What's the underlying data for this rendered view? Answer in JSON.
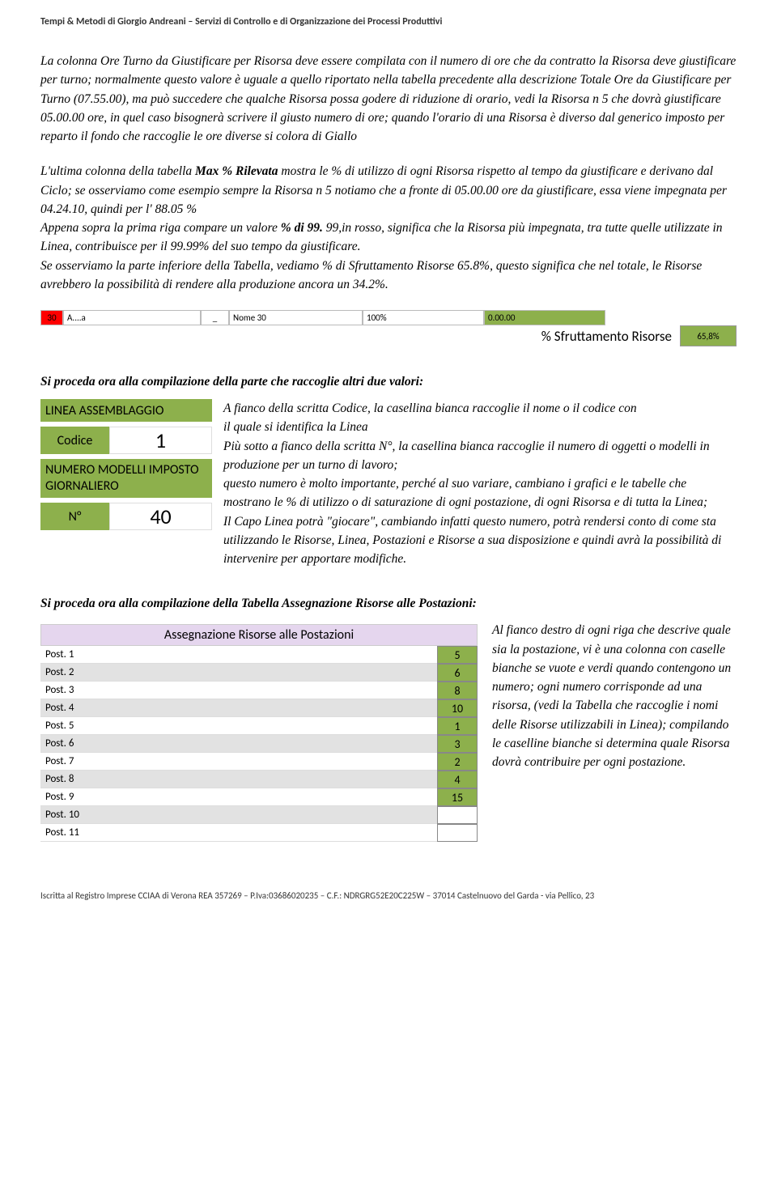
{
  "header": "Tempi & Metodi di Giorgio Andreani – Servizi di Controllo e di Organizzazione dei Processi Produttivi",
  "body1": "La colonna Ore Turno da Giustificare per Risorsa deve essere compilata con il numero di ore che da contratto la Risorsa deve giustificare per turno; normalmente questo valore è uguale a quello riportato nella tabella precedente alla descrizione Totale Ore da Giustificare per Turno (07.55.00), ma può succedere che qualche Risorsa possa godere di riduzione di orario, vedi la Risorsa n 5 che dovrà giustificare 05.00.00 ore, in quel caso bisognerà scrivere il giusto numero di ore; quando l'orario di una Risorsa è diverso dal generico imposto per reparto il fondo che raccoglie le ore diverse si colora di Giallo",
  "body2a": "L'ultima colonna della tabella ",
  "body2b": "Max % Rilevata",
  "body2c": " mostra le % di utilizzo di ogni Risorsa rispetto al tempo da giustificare e derivano dal Ciclo; se osserviamo come esempio sempre la Risorsa n 5 notiamo che a fronte di 05.00.00 ore da giustificare, essa viene impegnata per 04.24.10, quindi per l' 88.05 %",
  "body3a": "Appena sopra la prima riga compare un valore ",
  "body3b": "% di 99.",
  "body3c": "99,in rosso, significa che la Risorsa più impegnata, tra tutte quelle utilizzate in Linea, contribuisce per il 99.99% del suo tempo da giustificare.",
  "body4": "Se osserviamo la parte inferiore della Tabella, vediamo % di Sfruttamento Risorse 65.8%, questo significa che nel totale, le Risorse avrebbero la possibilità di rendere alla produzione ancora un 34.2%.",
  "row30": {
    "num": "30",
    "aa": "A....a",
    "dash": "_",
    "nome": "Nome 30",
    "percent": "100%",
    "green": "0.00.00"
  },
  "sfrutt_label": "% Sfruttamento Risorse",
  "sfrutt_val": "65,8%",
  "section2": "Si proceda ora alla compilazione della parte che raccoglie altri due valori:",
  "linea": {
    "title": "LINEA ASSEMBLAGGIO",
    "codice_label": "Codice",
    "codice_val": "1",
    "numero_modelli": "NUMERO MODELLI IMPOSTO GIORNALIERO",
    "n_label": "N°",
    "n_val": "40"
  },
  "right2": "A fianco della scritta Codice, la casellina bianca raccoglie il nome o il codice con\nil quale si identifica la Linea\nPiù sotto a fianco della scritta N°, la casellina bianca raccoglie il numero di oggetti o modelli in produzione per un turno di lavoro;\nquesto numero è molto importante, perché al suo variare, cambiano i grafici e le tabelle che mostrano le % di utilizzo o di saturazione di ogni postazione, di ogni Risorsa e di tutta la Linea;\nIl Capo Linea potrà \"giocare\", cambiando infatti questo numero, potrà rendersi conto di come sta utilizzando le Risorse, Linea, Postazioni e Risorse a sua disposizione e quindi avrà la possibilità di intervenire per apportare modifiche.",
  "section3": "Si proceda ora alla compilazione della Tabella Assegnazione Risorse alle Postazioni:",
  "assign_title": "Assegnazione Risorse alle Postazioni",
  "posts": [
    {
      "label": "Post. 1",
      "val": "5"
    },
    {
      "label": "Post. 2",
      "val": "6"
    },
    {
      "label": "Post. 3",
      "val": "8"
    },
    {
      "label": "Post. 4",
      "val": "10"
    },
    {
      "label": "Post. 5",
      "val": "1"
    },
    {
      "label": "Post. 6",
      "val": "3"
    },
    {
      "label": "Post. 7",
      "val": "2"
    },
    {
      "label": "Post. 8",
      "val": "4"
    },
    {
      "label": "Post. 9",
      "val": "15"
    },
    {
      "label": "Post. 10",
      "val": ""
    },
    {
      "label": "Post. 11",
      "val": ""
    }
  ],
  "right3": "Al fianco destro di ogni riga che descrive quale sia la postazione, vi è una colonna con caselle bianche se vuote e verdi quando contengono un numero; ogni numero corrisponde ad una risorsa, (vedi la Tabella che raccoglie i nomi delle Risorse utilizzabili in Linea); compilando le caselline bianche si determina quale Risorsa dovrà contribuire per ogni postazione.",
  "footer": "Iscritta al Registro Imprese CCIAA di Verona  REA  357269 – P.Iva:03686020235 – C.F.: NDRGRG52E20C225W – 37014 Castelnuovo del Garda -  via Pellico, 23"
}
